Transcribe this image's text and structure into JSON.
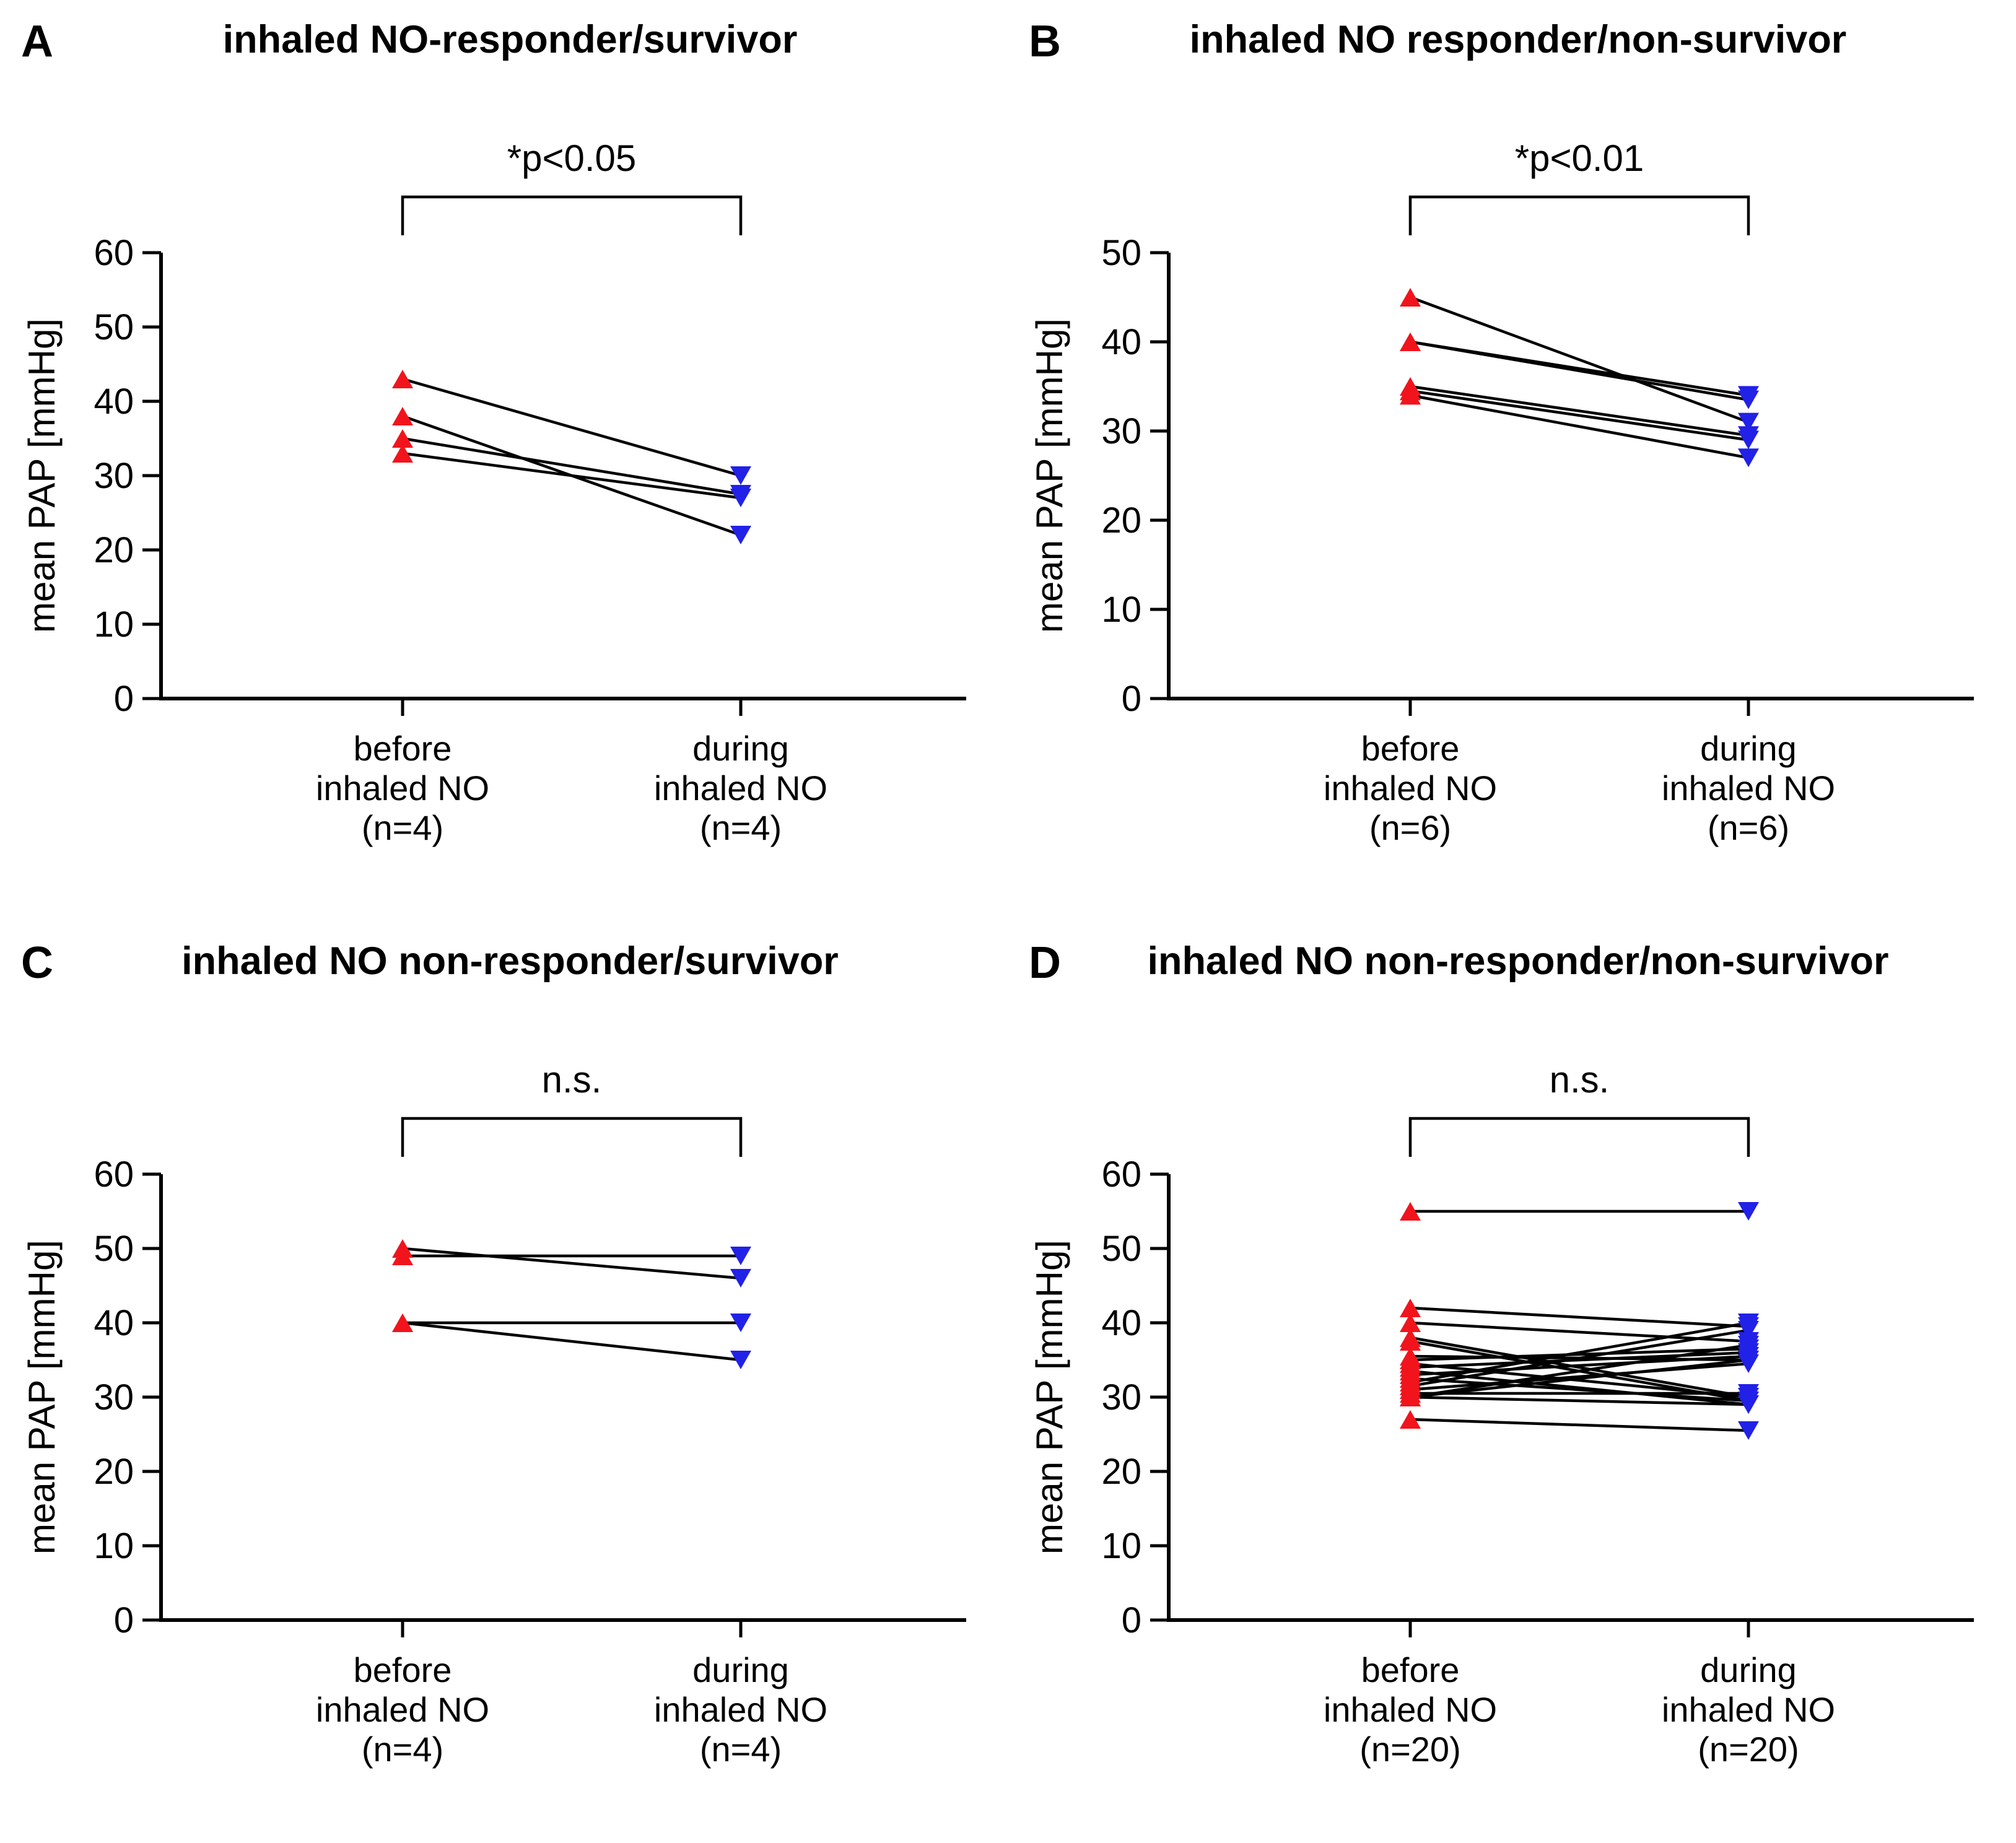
{
  "figure_background": "#ffffff",
  "ylabel": "mean PAP [mmHg]",
  "colors": {
    "before_marker": "#F2141C",
    "during_marker": "#2121E8",
    "pair_line": "#000000",
    "axis": "#000000"
  },
  "chart_data": [
    {
      "type": "line",
      "panel_letter": "A",
      "title": "inhaled NO-responder/survivor",
      "significance": "*p<0.05",
      "ylabel": "mean PAP [mmHg]",
      "ylim": [
        0,
        60
      ],
      "ytick_step": 10,
      "yticks": [
        0,
        10,
        20,
        30,
        40,
        50,
        60
      ],
      "grid": false,
      "categories": [
        "before inhaled NO (n=4)",
        "during inhaled NO (n=4)"
      ],
      "before_label_lines": [
        "before",
        "inhaled NO",
        "(n=4)"
      ],
      "during_label_lines": [
        "during",
        "inhaled NO",
        "(n=4)"
      ],
      "series_note": "paired mean PAP values per patient [before, during]",
      "pairs": [
        [
          43,
          30
        ],
        [
          38,
          22
        ],
        [
          35,
          27.5
        ],
        [
          33,
          27
        ]
      ]
    },
    {
      "type": "line",
      "panel_letter": "B",
      "title": "inhaled NO responder/non-survivor",
      "significance": "*p<0.01",
      "ylabel": "mean PAP [mmHg]",
      "ylim": [
        0,
        50
      ],
      "ytick_step": 10,
      "yticks": [
        0,
        10,
        20,
        30,
        40,
        50
      ],
      "grid": false,
      "categories": [
        "before inhaled NO (n=6)",
        "during inhaled NO (n=6)"
      ],
      "before_label_lines": [
        "before",
        "inhaled NO",
        "(n=6)"
      ],
      "during_label_lines": [
        "during",
        "inhaled NO",
        "(n=6)"
      ],
      "series_note": "paired mean PAP values per patient [before, during]",
      "pairs": [
        [
          45,
          31
        ],
        [
          40,
          34
        ],
        [
          40,
          33.5
        ],
        [
          35,
          29.5
        ],
        [
          34.5,
          29
        ],
        [
          34,
          27
        ]
      ]
    },
    {
      "type": "line",
      "panel_letter": "C",
      "title": "inhaled NO non-responder/survivor",
      "significance": "n.s.",
      "ylabel": "mean PAP [mmHg]",
      "ylim": [
        0,
        60
      ],
      "ytick_step": 10,
      "yticks": [
        0,
        10,
        20,
        30,
        40,
        50,
        60
      ],
      "grid": false,
      "categories": [
        "before inhaled NO (n=4)",
        "during inhaled NO (n=4)"
      ],
      "before_label_lines": [
        "before",
        "inhaled NO",
        "(n=4)"
      ],
      "during_label_lines": [
        "during",
        "inhaled NO",
        "(n=4)"
      ],
      "series_note": "paired mean PAP values per patient [before, during]",
      "pairs": [
        [
          50,
          46
        ],
        [
          49,
          49
        ],
        [
          40,
          40
        ],
        [
          40,
          35
        ]
      ]
    },
    {
      "type": "line",
      "panel_letter": "D",
      "title": "inhaled NO non-responder/non-survivor",
      "significance": "n.s.",
      "ylabel": "mean PAP [mmHg]",
      "ylim": [
        0,
        60
      ],
      "ytick_step": 10,
      "yticks": [
        0,
        10,
        20,
        30,
        40,
        50,
        60
      ],
      "grid": false,
      "categories": [
        "before inhaled NO (n=20)",
        "during inhaled NO (n=20)"
      ],
      "before_label_lines": [
        "before",
        "inhaled NO",
        "(n=20)"
      ],
      "during_label_lines": [
        "during",
        "inhaled NO",
        "(n=20)"
      ],
      "series_note": "paired mean PAP values per patient [before, during]",
      "pairs": [
        [
          55,
          55
        ],
        [
          42,
          39.5
        ],
        [
          40,
          37.5
        ],
        [
          38,
          30
        ],
        [
          37.5,
          29.5
        ],
        [
          35.5,
          35
        ],
        [
          35,
          36.5
        ],
        [
          34.5,
          30
        ],
        [
          34,
          36
        ],
        [
          33.5,
          29
        ],
        [
          33,
          35.5
        ],
        [
          32.5,
          29.5
        ],
        [
          32,
          40
        ],
        [
          31.5,
          39
        ],
        [
          31,
          34.5
        ],
        [
          30.5,
          30.5
        ],
        [
          30,
          37
        ],
        [
          30,
          29
        ],
        [
          30,
          35
        ],
        [
          27,
          25.5
        ]
      ]
    }
  ]
}
